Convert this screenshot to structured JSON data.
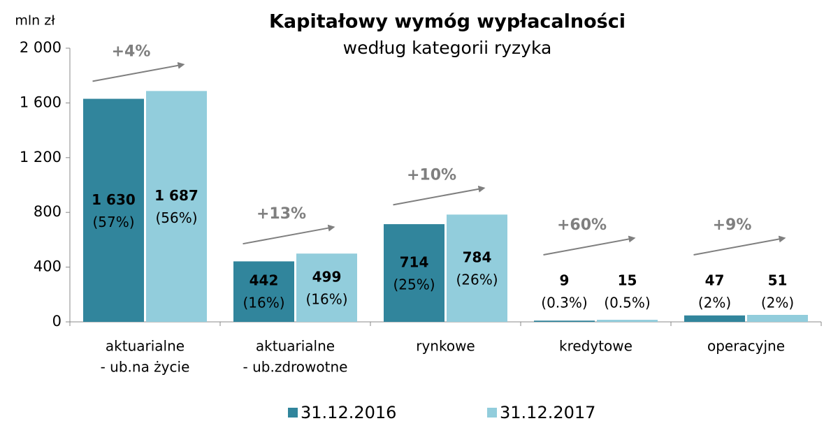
{
  "chart_data": {
    "type": "bar",
    "title": "Kapitałowy wymóg wypłacalności",
    "subtitle": "według kategorii ryzyka",
    "y_axis_label": "mln zł",
    "categories": [
      [
        "aktuarialne",
        "- ub.na życie"
      ],
      [
        "aktuarialne",
        "- ub.zdrowotne"
      ],
      [
        "rynkowe"
      ],
      [
        "kredytowe"
      ],
      [
        "operacyjne"
      ]
    ],
    "series": [
      {
        "name": "31.12.2016",
        "color": "#31859c",
        "values": [
          1630,
          442,
          714,
          9,
          47
        ],
        "value_labels": [
          "1 630",
          "442",
          "714",
          "9",
          "47"
        ],
        "share_labels": [
          "(57%)",
          "(16%)",
          "(25%)",
          "(0.3%)",
          "(2%)"
        ]
      },
      {
        "name": "31.12.2017",
        "color": "#92cddc",
        "values": [
          1687,
          499,
          784,
          15,
          51
        ],
        "value_labels": [
          "1 687",
          "499",
          "784",
          "15",
          "51"
        ],
        "share_labels": [
          "(56%)",
          "(16%)",
          "(26%)",
          "(0.5%)",
          "(2%)"
        ]
      }
    ],
    "changes": [
      "+4%",
      "+13%",
      "+10%",
      "+60%",
      "+9%"
    ],
    "ylim": [
      0,
      2000
    ],
    "yticks": [
      0,
      400,
      800,
      {
        "value": 1200,
        "label": "1 200"
      },
      {
        "value": 1600,
        "label": "1 600"
      },
      {
        "value": 2000,
        "label": "2 000"
      }
    ],
    "legend": "bottom"
  }
}
